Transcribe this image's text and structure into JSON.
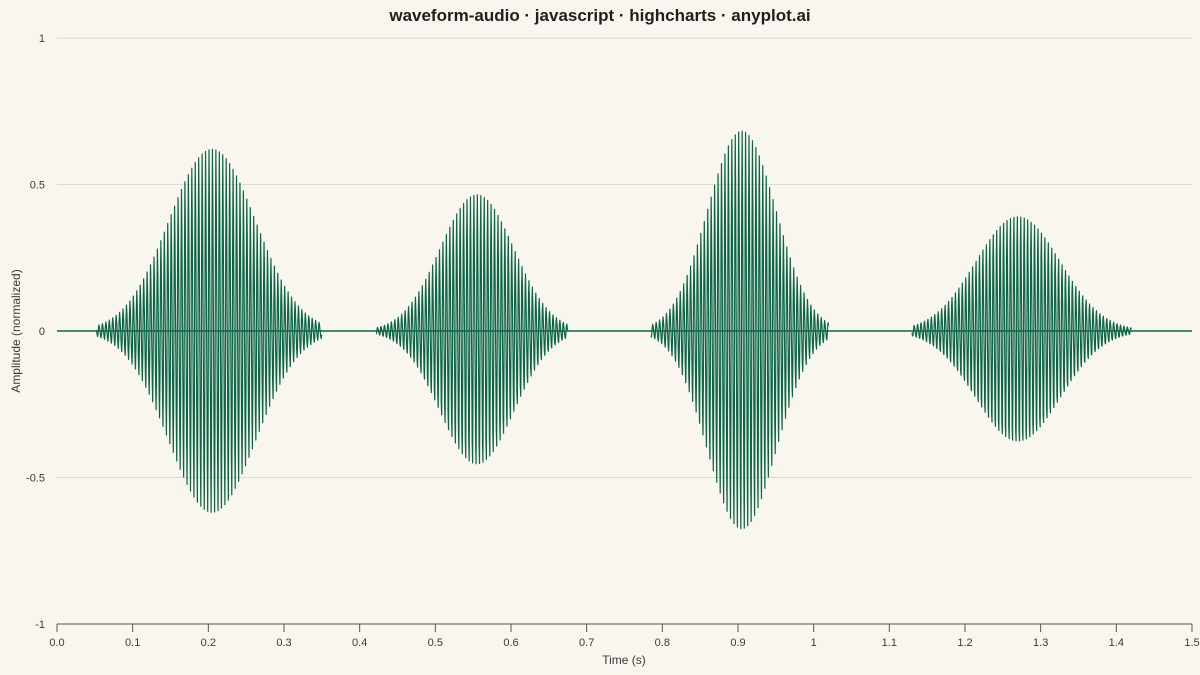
{
  "chart_data": {
    "type": "line",
    "title": "waveform-audio · javascript · highcharts · anyplot.ai",
    "xlabel": "Time (s)",
    "ylabel": "Amplitude (normalized)",
    "xlim": [
      0,
      1.5
    ],
    "ylim": [
      -1,
      1
    ],
    "x_ticks": [
      "0.0",
      "0.1",
      "0.2",
      "0.3",
      "0.4",
      "0.5",
      "0.6",
      "0.7",
      "0.8",
      "0.9",
      "1",
      "1.1",
      "1.2",
      "1.3",
      "1.4",
      "1.5"
    ],
    "y_ticks": [
      "1",
      "0.5",
      "0",
      "-0.5",
      "-1"
    ],
    "y_tick_values": [
      1,
      0.5,
      0,
      -0.5,
      -1
    ],
    "grid": "horizontal",
    "legend": "none",
    "series_color": "#0B6645",
    "series": [
      {
        "bursts": [
          {
            "start": 0.052,
            "end": 0.35,
            "peak_time": 0.205,
            "peak_amplitude": 0.7
          },
          {
            "start": 0.422,
            "end": 0.675,
            "peak_time": 0.555,
            "peak_amplitude": 0.53
          },
          {
            "start": 0.785,
            "end": 1.02,
            "peak_time": 0.905,
            "peak_amplitude": 0.77
          },
          {
            "start": 1.13,
            "end": 1.42,
            "peak_time": 1.27,
            "peak_amplitude": 0.45
          }
        ],
        "oscillation_hz": 220
      }
    ]
  }
}
